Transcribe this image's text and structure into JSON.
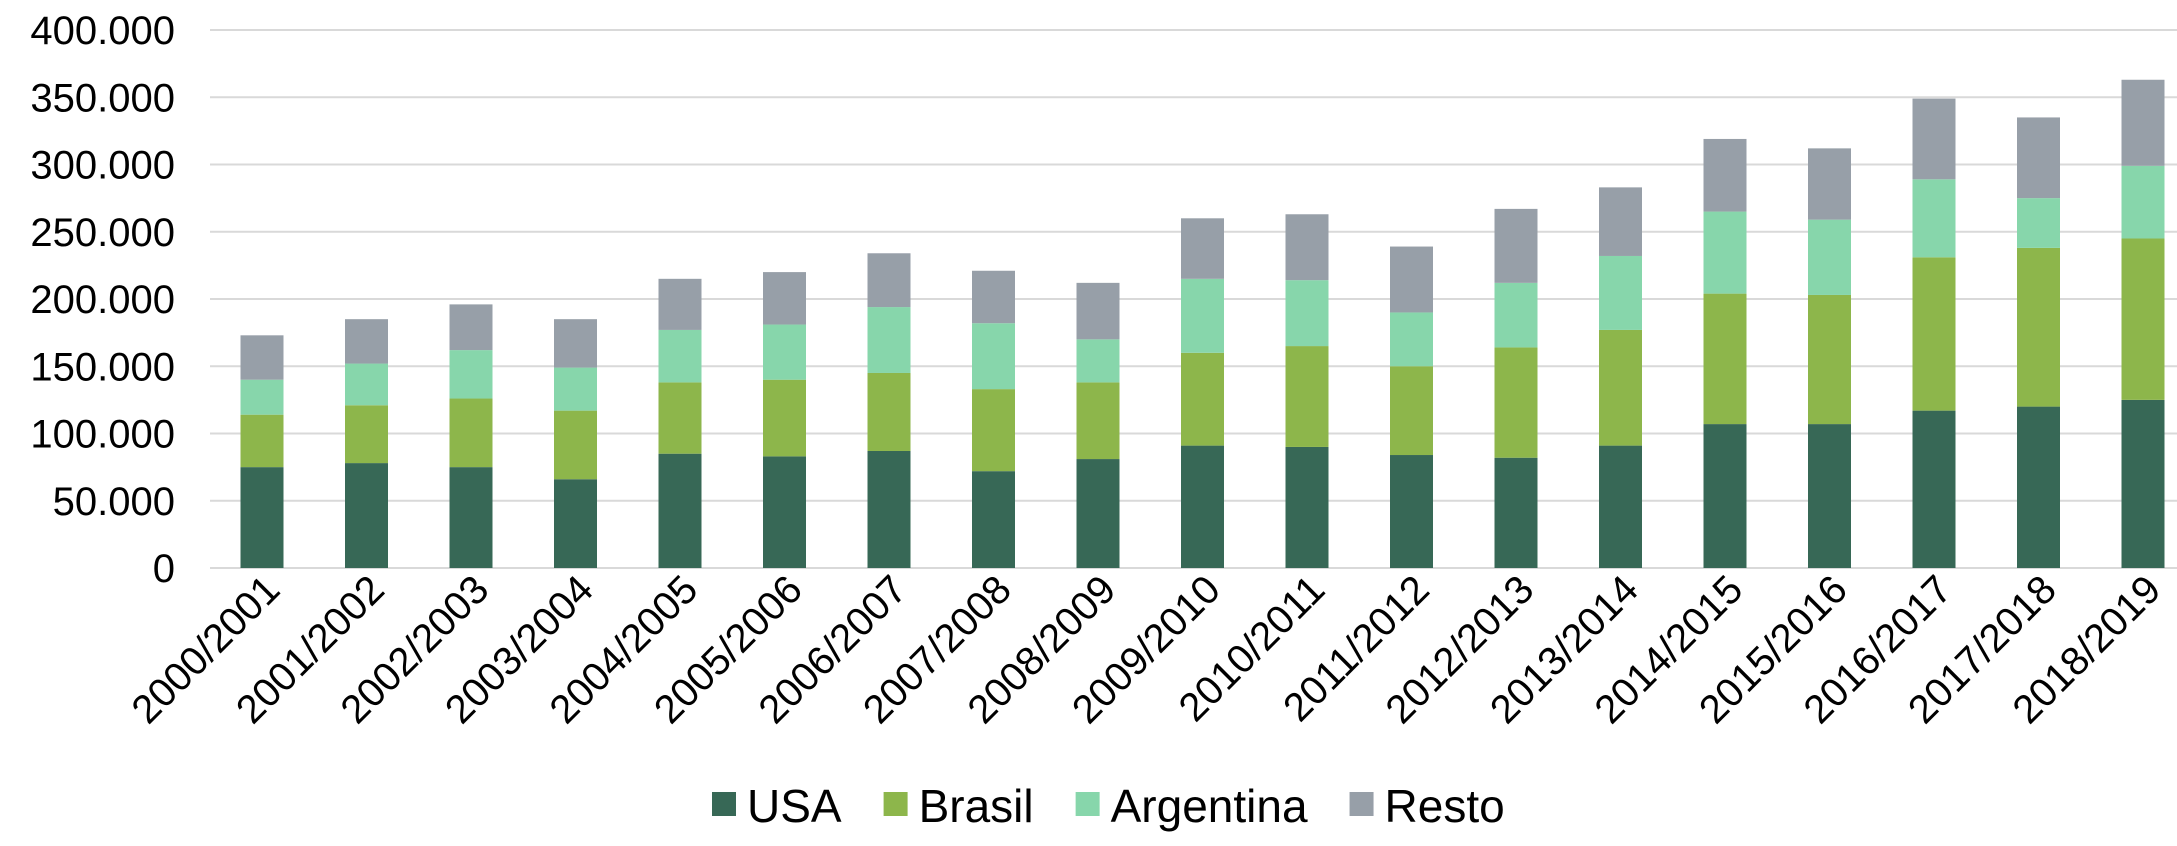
{
  "chart_data": {
    "type": "bar",
    "stacked": true,
    "title": "",
    "xlabel": "",
    "ylabel": "",
    "ylim": [
      0,
      400000
    ],
    "y_ticks": [
      0,
      50000,
      100000,
      150000,
      200000,
      250000,
      300000,
      350000,
      400000
    ],
    "y_tick_labels": [
      "0",
      "50.000",
      "100.000",
      "150.000",
      "200.000",
      "250.000",
      "300.000",
      "350.000",
      "400.000"
    ],
    "grid": true,
    "legend_position": "bottom",
    "categories": [
      "2000/2001",
      "2001/2002",
      "2002/2003",
      "2003/2004",
      "2004/2005",
      "2005/2006",
      "2006/2007",
      "2007/2008",
      "2008/2009",
      "2009/2010",
      "2010/2011",
      "2011/2012",
      "2012/2013",
      "2013/2014",
      "2014/2015",
      "2015/2016",
      "2016/2017",
      "2017/2018",
      "2018/2019"
    ],
    "series": [
      {
        "name": "USA",
        "color": "#376856",
        "values": [
          75000,
          78000,
          75000,
          66000,
          85000,
          83000,
          87000,
          72000,
          81000,
          91000,
          90000,
          84000,
          82000,
          91000,
          107000,
          107000,
          117000,
          120000,
          125000
        ]
      },
      {
        "name": "Brasil",
        "color": "#8db64b",
        "values": [
          39000,
          43000,
          51000,
          51000,
          53000,
          57000,
          58000,
          61000,
          57000,
          69000,
          75000,
          66000,
          82000,
          86000,
          97000,
          96000,
          114000,
          118000,
          120000
        ]
      },
      {
        "name": "Argentina",
        "color": "#87d6ab",
        "values": [
          26000,
          31000,
          36000,
          32000,
          39000,
          41000,
          49000,
          49000,
          32000,
          55000,
          49000,
          40000,
          48000,
          55000,
          61000,
          56000,
          58000,
          37000,
          54000
        ]
      },
      {
        "name": "Resto",
        "color": "#979fa8",
        "values": [
          33000,
          33000,
          34000,
          36000,
          38000,
          39000,
          40000,
          39000,
          42000,
          45000,
          49000,
          49000,
          55000,
          51000,
          54000,
          53000,
          60000,
          60000,
          64000
        ]
      }
    ]
  }
}
